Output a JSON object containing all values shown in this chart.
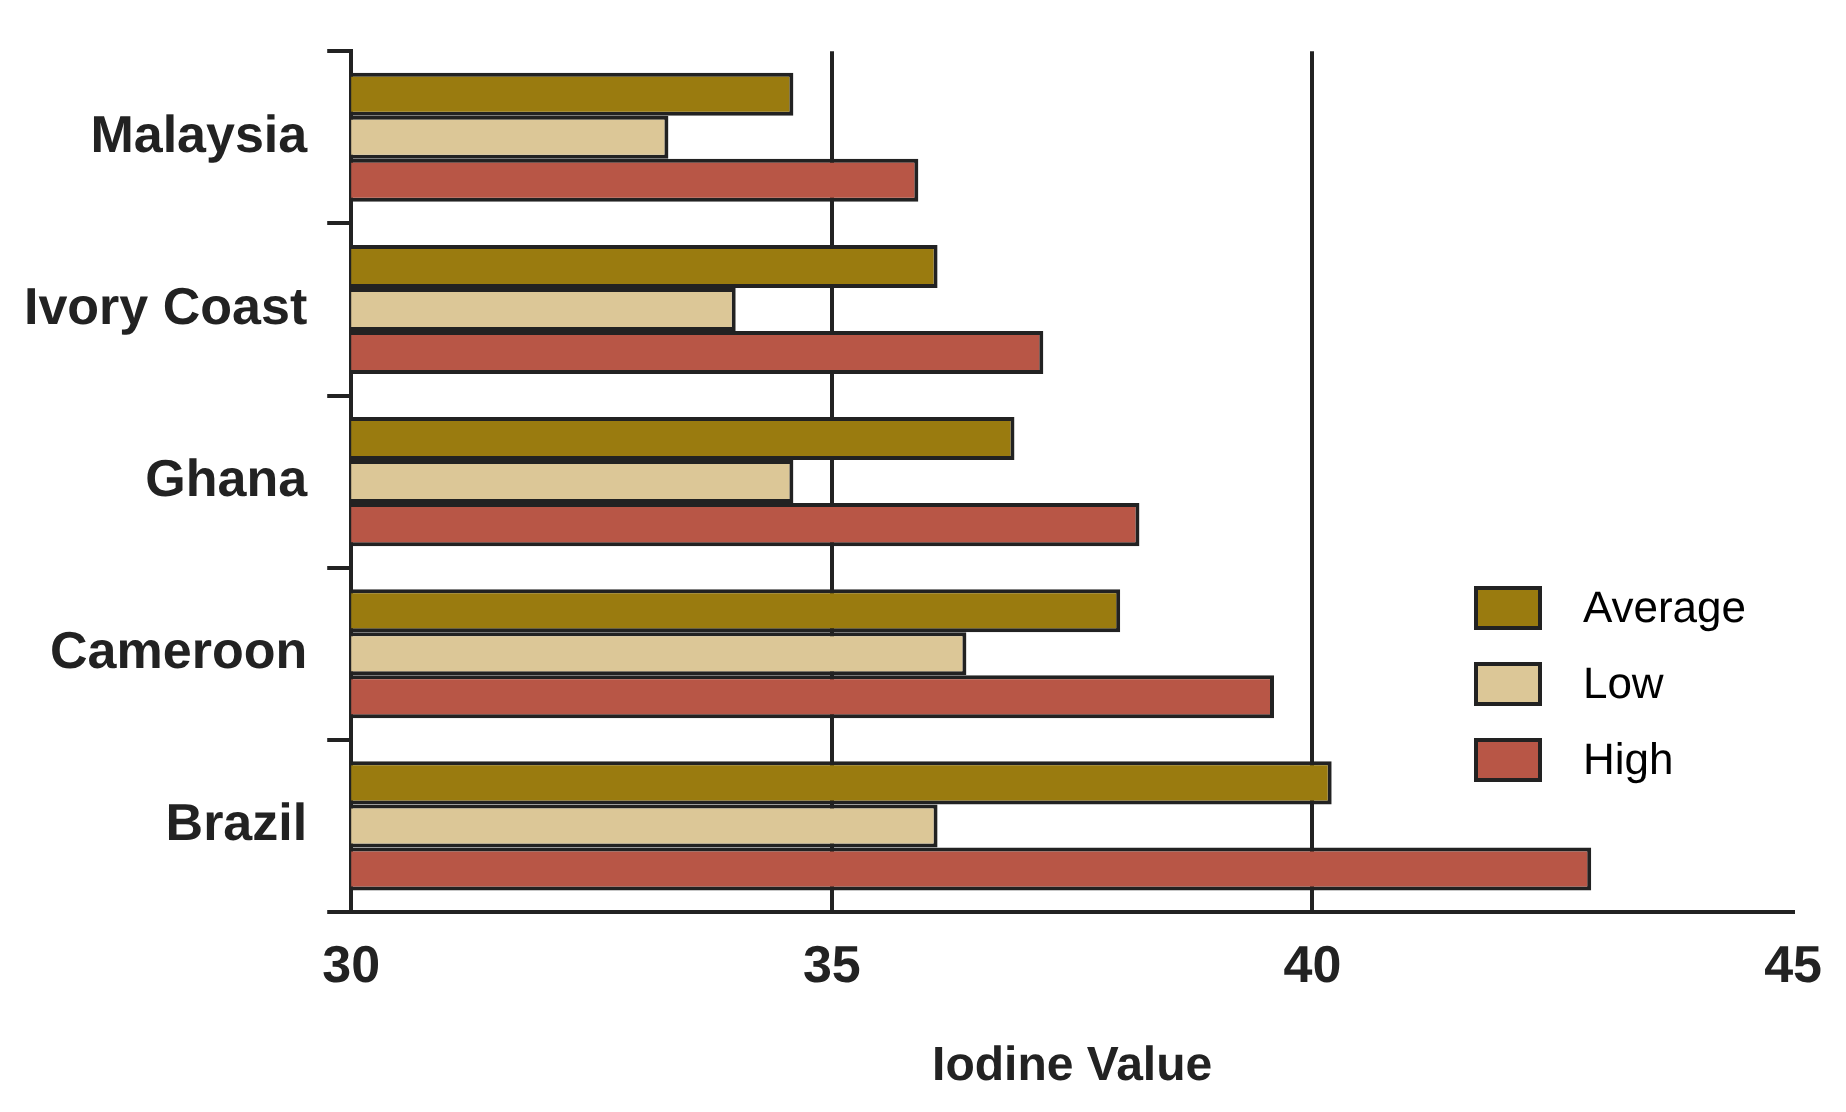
{
  "chart_data": {
    "type": "bar",
    "orientation": "horizontal",
    "xlabel": "Iodine Value",
    "categories": [
      "Malaysia",
      "Ivory Coast",
      "Ghana",
      "Cameroon",
      "Brazil"
    ],
    "series": [
      {
        "name": "Average",
        "color": "#9a7b0f",
        "values": [
          34.6,
          36.1,
          36.9,
          38.0,
          40.2
        ]
      },
      {
        "name": "Low",
        "color": "#dcc797",
        "values": [
          33.3,
          34.0,
          34.6,
          36.4,
          36.1
        ]
      },
      {
        "name": "High",
        "color": "#b85646",
        "values": [
          35.9,
          37.2,
          38.2,
          39.6,
          42.9
        ]
      }
    ],
    "xlim": [
      30,
      45
    ],
    "xticks": [
      30,
      35,
      40,
      45
    ],
    "grid": "x",
    "legend": "right"
  }
}
